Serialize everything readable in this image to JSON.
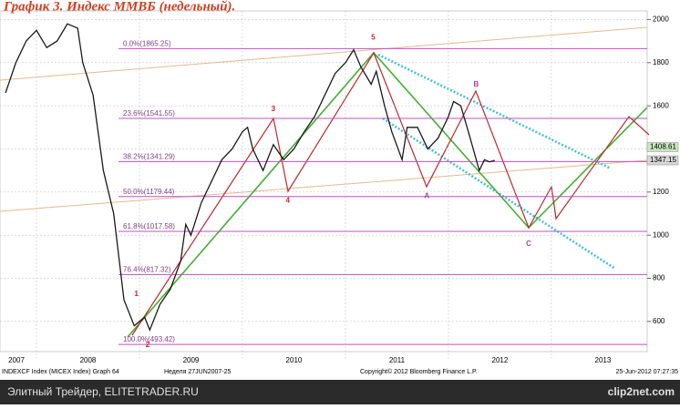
{
  "chart_data": {
    "type": "line",
    "title": "График 3.   Индекс ММВБ (недельный).",
    "footer": {
      "left": "INDEXCF Index (MICEX Index) Graph 64",
      "period": "Неделя 27JUN2007-25",
      "copyright": "Copyright© 2012 Bloomberg Finance L.P.",
      "timestamp": "25-Jun-2012 07:27:35"
    },
    "watermark": {
      "left": "Элитный Трейдер, ELITETRADER.RU",
      "right": "clip2net.com"
    },
    "x": [
      2007.7,
      2007.8,
      2007.9,
      2008.0,
      2008.1,
      2008.2,
      2008.3,
      2008.4,
      2008.45,
      2008.55,
      2008.65,
      2008.75,
      2008.85,
      2008.95,
      2009.05,
      2009.1,
      2009.2,
      2009.3,
      2009.4,
      2009.45,
      2009.5,
      2009.6,
      2009.7,
      2009.8,
      2009.9,
      2010.0,
      2010.05,
      2010.1,
      2010.2,
      2010.3,
      2010.4,
      2010.5,
      2010.6,
      2010.7,
      2010.8,
      2010.9,
      2011.0,
      2011.08,
      2011.15,
      2011.25,
      2011.3,
      2011.38,
      2011.45,
      2011.55,
      2011.6,
      2011.7,
      2011.8,
      2011.9,
      2012.0,
      2012.05,
      2012.12,
      2012.2,
      2012.3,
      2012.35,
      2012.4,
      2012.45
    ],
    "values": [
      1660,
      1800,
      1900,
      1950,
      1870,
      1900,
      1980,
      1960,
      1800,
      1650,
      1300,
      1100,
      700,
      580,
      620,
      560,
      680,
      750,
      880,
      1050,
      1000,
      1150,
      1250,
      1350,
      1400,
      1480,
      1500,
      1400,
      1300,
      1420,
      1350,
      1400,
      1480,
      1550,
      1650,
      1750,
      1800,
      1860,
      1780,
      1700,
      1760,
      1600,
      1480,
      1350,
      1500,
      1500,
      1400,
      1450,
      1550,
      1620,
      1600,
      1470,
      1300,
      1350,
      1340,
      1347
    ],
    "color": "#1a1a1a",
    "xlim": [
      2007.646,
      2013.93
    ],
    "xticks": [
      2007,
      2008,
      2009,
      2010,
      2011,
      2012,
      2013
    ],
    "ylim": [
      460,
      2040
    ],
    "yticks": [
      600,
      800,
      1000,
      1200,
      1400,
      1600,
      1800,
      2000
    ],
    "grid": true,
    "levels": [
      {
        "label": "0.0%(1865.25)",
        "value": 1865.25
      },
      {
        "label": "23.6%(1541.55)",
        "value": 1541.55
      },
      {
        "label": "38.2%(1341.29)",
        "value": 1341.29
      },
      {
        "label": "50.0%(1179.44)",
        "value": 1179.44
      },
      {
        "label": "61.8%(1017.58)",
        "value": 1017.58
      },
      {
        "label": "76.4%(817.32)",
        "value": 817.32
      },
      {
        "label": "100.0%(493.42)",
        "value": 493.42
      }
    ],
    "price_markers": [
      1408.61,
      1347.15
    ],
    "waves": [
      {
        "text": "1",
        "x": 2008.97,
        "y": 727,
        "color": "#c0282d"
      },
      {
        "text": "2",
        "x": 2009.08,
        "y": 490,
        "color": "#c0282d"
      },
      {
        "text": "3",
        "x": 2010.3,
        "y": 1584,
        "color": "#c0282d"
      },
      {
        "text": "4",
        "x": 2010.44,
        "y": 1160,
        "color": "#c0282d"
      },
      {
        "text": "5",
        "x": 2011.27,
        "y": 1915,
        "color": "#c0282d"
      },
      {
        "text": "A",
        "x": 2011.79,
        "y": 1181,
        "color": "#a040b0"
      },
      {
        "text": "B",
        "x": 2012.27,
        "y": 1699,
        "color": "#a040b0"
      },
      {
        "text": "C",
        "x": 2012.78,
        "y": 960,
        "color": "#a040b0"
      }
    ]
  }
}
